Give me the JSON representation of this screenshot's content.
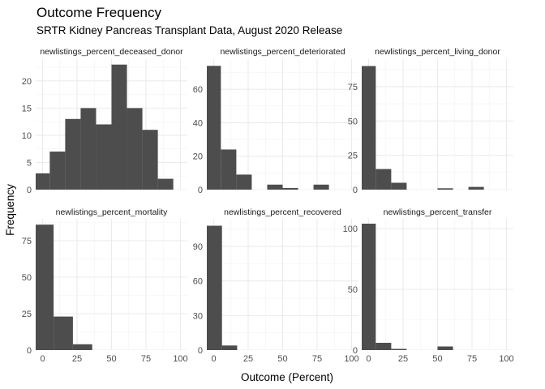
{
  "chart_data": {
    "type": "bar",
    "title": "Outcome Frequency",
    "subtitle": "SRTR Kidney Pancreas Transplant Data, August 2020 Release",
    "xlabel": "Outcome (Percent)",
    "ylabel": "Frequency",
    "xlim": [
      -5,
      105
    ],
    "x_ticks": [
      0,
      25,
      50,
      75,
      100
    ],
    "grid": true,
    "bar_color": "#4d4d4d",
    "panels": [
      {
        "label": "newlistings_percent_deceased_donor",
        "ylim": [
          0,
          24
        ],
        "y_ticks": [
          0,
          5,
          10,
          15,
          20
        ],
        "bin_width": 11.2,
        "bin_start": -6,
        "counts": [
          3,
          7,
          13,
          15,
          12,
          23,
          15,
          11,
          2
        ]
      },
      {
        "label": "newlistings_percent_deteriorated",
        "ylim": [
          0,
          78
        ],
        "y_ticks": [
          0,
          20,
          40,
          60
        ],
        "bin_width": 11.2,
        "bin_start": -6,
        "counts": [
          74,
          24,
          9,
          0,
          3,
          1,
          0,
          3,
          0
        ]
      },
      {
        "label": "newlistings_percent_living_donor",
        "ylim": [
          0,
          95
        ],
        "y_ticks": [
          0,
          25,
          50,
          75
        ],
        "bin_width": 11.2,
        "bin_start": -6,
        "counts": [
          90,
          15,
          5,
          0,
          0,
          1,
          0,
          2,
          0
        ]
      },
      {
        "label": "newlistings_percent_mortality",
        "ylim": [
          0,
          90
        ],
        "y_ticks": [
          0,
          25,
          50,
          75
        ],
        "bin_width": 14,
        "bin_start": -6,
        "counts": [
          86,
          23,
          4
        ]
      },
      {
        "label": "newlistings_percent_recovered",
        "ylim": [
          0,
          114
        ],
        "y_ticks": [
          0,
          30,
          60,
          90
        ],
        "bin_width": 11,
        "bin_start": -5,
        "counts": [
          108,
          4
        ]
      },
      {
        "label": "newlistings_percent_transfer",
        "ylim": [
          0,
          108
        ],
        "y_ticks": [
          0,
          50,
          100
        ],
        "bin_width": 11.2,
        "bin_start": -6,
        "counts": [
          104,
          6,
          1,
          0,
          0,
          3,
          0,
          0,
          0
        ]
      }
    ]
  }
}
